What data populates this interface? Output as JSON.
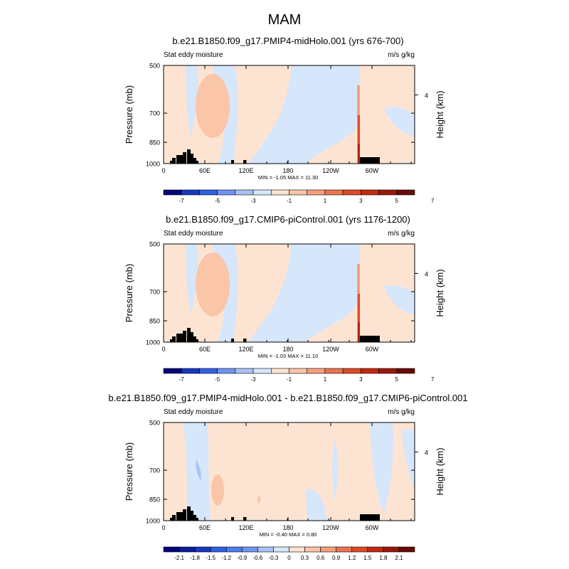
{
  "figure_title": "MAM",
  "chart_data": [
    {
      "type": "heatmap",
      "title": "b.e21.B1850.f09_g17.PMIP4-midHolo.001 (yrs 676-700)",
      "left_label": "Stat eddy moisture",
      "right_label": "m/s g/kg",
      "ylabel": "Pressure (mb)",
      "ylabel_right": "Height (km)",
      "y_ticks": [
        "500",
        "700",
        "850",
        "1000"
      ],
      "y_right_ticks": [
        "4"
      ],
      "x_ticks": [
        "0",
        "60E",
        "120E",
        "180",
        "120W",
        "60W"
      ],
      "stats": "MIN =  -1.05  MAX =  11.30",
      "colorbar_labels": [
        "-7",
        "-5",
        "-3",
        "-1",
        "1",
        "3",
        "5",
        "7"
      ],
      "colorbar_colors": [
        "#04067e",
        "#1838c0",
        "#2e62e2",
        "#6f94f2",
        "#a9c2f5",
        "#d6e6fb",
        "#fde4d2",
        "#fbc5a8",
        "#f5a07c",
        "#ec7350",
        "#dd4a26",
        "#c4290f",
        "#9a1808",
        "#6a0a05"
      ],
      "features": [
        "Warm blob near 60E, 550-780 mb (1 to 3)",
        "Sharp positive spike near 70W at surface (up to 11.3)"
      ]
    },
    {
      "type": "heatmap",
      "title": "b.e21.B1850.f09_g17.CMIP6-piControl.001 (yrs 1176-1200)",
      "left_label": "Stat eddy moisture",
      "right_label": "m/s g/kg",
      "ylabel": "Pressure (mb)",
      "ylabel_right": "Height (km)",
      "y_ticks": [
        "500",
        "700",
        "850",
        "1000"
      ],
      "y_right_ticks": [
        "4"
      ],
      "x_ticks": [
        "0",
        "60E",
        "120E",
        "180",
        "120W",
        "60W"
      ],
      "stats": "MIN =  -1.03  MAX =  11.10",
      "colorbar_labels": [
        "-7",
        "-5",
        "-3",
        "-1",
        "1",
        "3",
        "5",
        "7"
      ],
      "colorbar_colors": [
        "#04067e",
        "#1838c0",
        "#2e62e2",
        "#6f94f2",
        "#a9c2f5",
        "#d6e6fb",
        "#fde4d2",
        "#fbc5a8",
        "#f5a07c",
        "#ec7350",
        "#dd4a26",
        "#c4290f",
        "#9a1808",
        "#6a0a05"
      ],
      "features": [
        "Warm blob near 60E, 550-780 mb (1 to 3)",
        "Sharp positive spike near 70W at surface (up to 11.1)"
      ]
    },
    {
      "type": "heatmap",
      "title": "b.e21.B1850.f09_g17.PMIP4-midHolo.001 - b.e21.B1850.f09_g17.CMIP6-piControl.001",
      "left_label": "Stat eddy moisture",
      "right_label": "m/s g/kg",
      "ylabel": "Pressure (mb)",
      "ylabel_right": "Height (km)",
      "y_ticks": [
        "500",
        "700",
        "850",
        "1000"
      ],
      "y_right_ticks": [
        "4"
      ],
      "x_ticks": [
        "0",
        "60E",
        "120E",
        "180",
        "120W",
        "60W"
      ],
      "stats": "MIN =  -0.40  MAX =  0.80",
      "colorbar_labels": [
        "-2.1",
        "-1.8",
        "-1.5",
        "-1.2",
        "-0.9",
        "-0.6",
        "-0.3",
        "0",
        "0.3",
        "0.6",
        "0.9",
        "1.2",
        "1.5",
        "1.8",
        "2.1"
      ],
      "colorbar_colors": [
        "#04067e",
        "#0d1d9e",
        "#1838c0",
        "#2e62e2",
        "#4d7eec",
        "#6f94f2",
        "#a9c2f5",
        "#d6e6fb",
        "#fde4d2",
        "#fbc5a8",
        "#f5a07c",
        "#ec7350",
        "#dd4a26",
        "#c4290f",
        "#9a1808",
        "#6a0a05"
      ],
      "features": [
        "Small negative patch near 40E, 650-720 mb",
        "Positive patch near 75E, 800-880 mb"
      ]
    }
  ]
}
